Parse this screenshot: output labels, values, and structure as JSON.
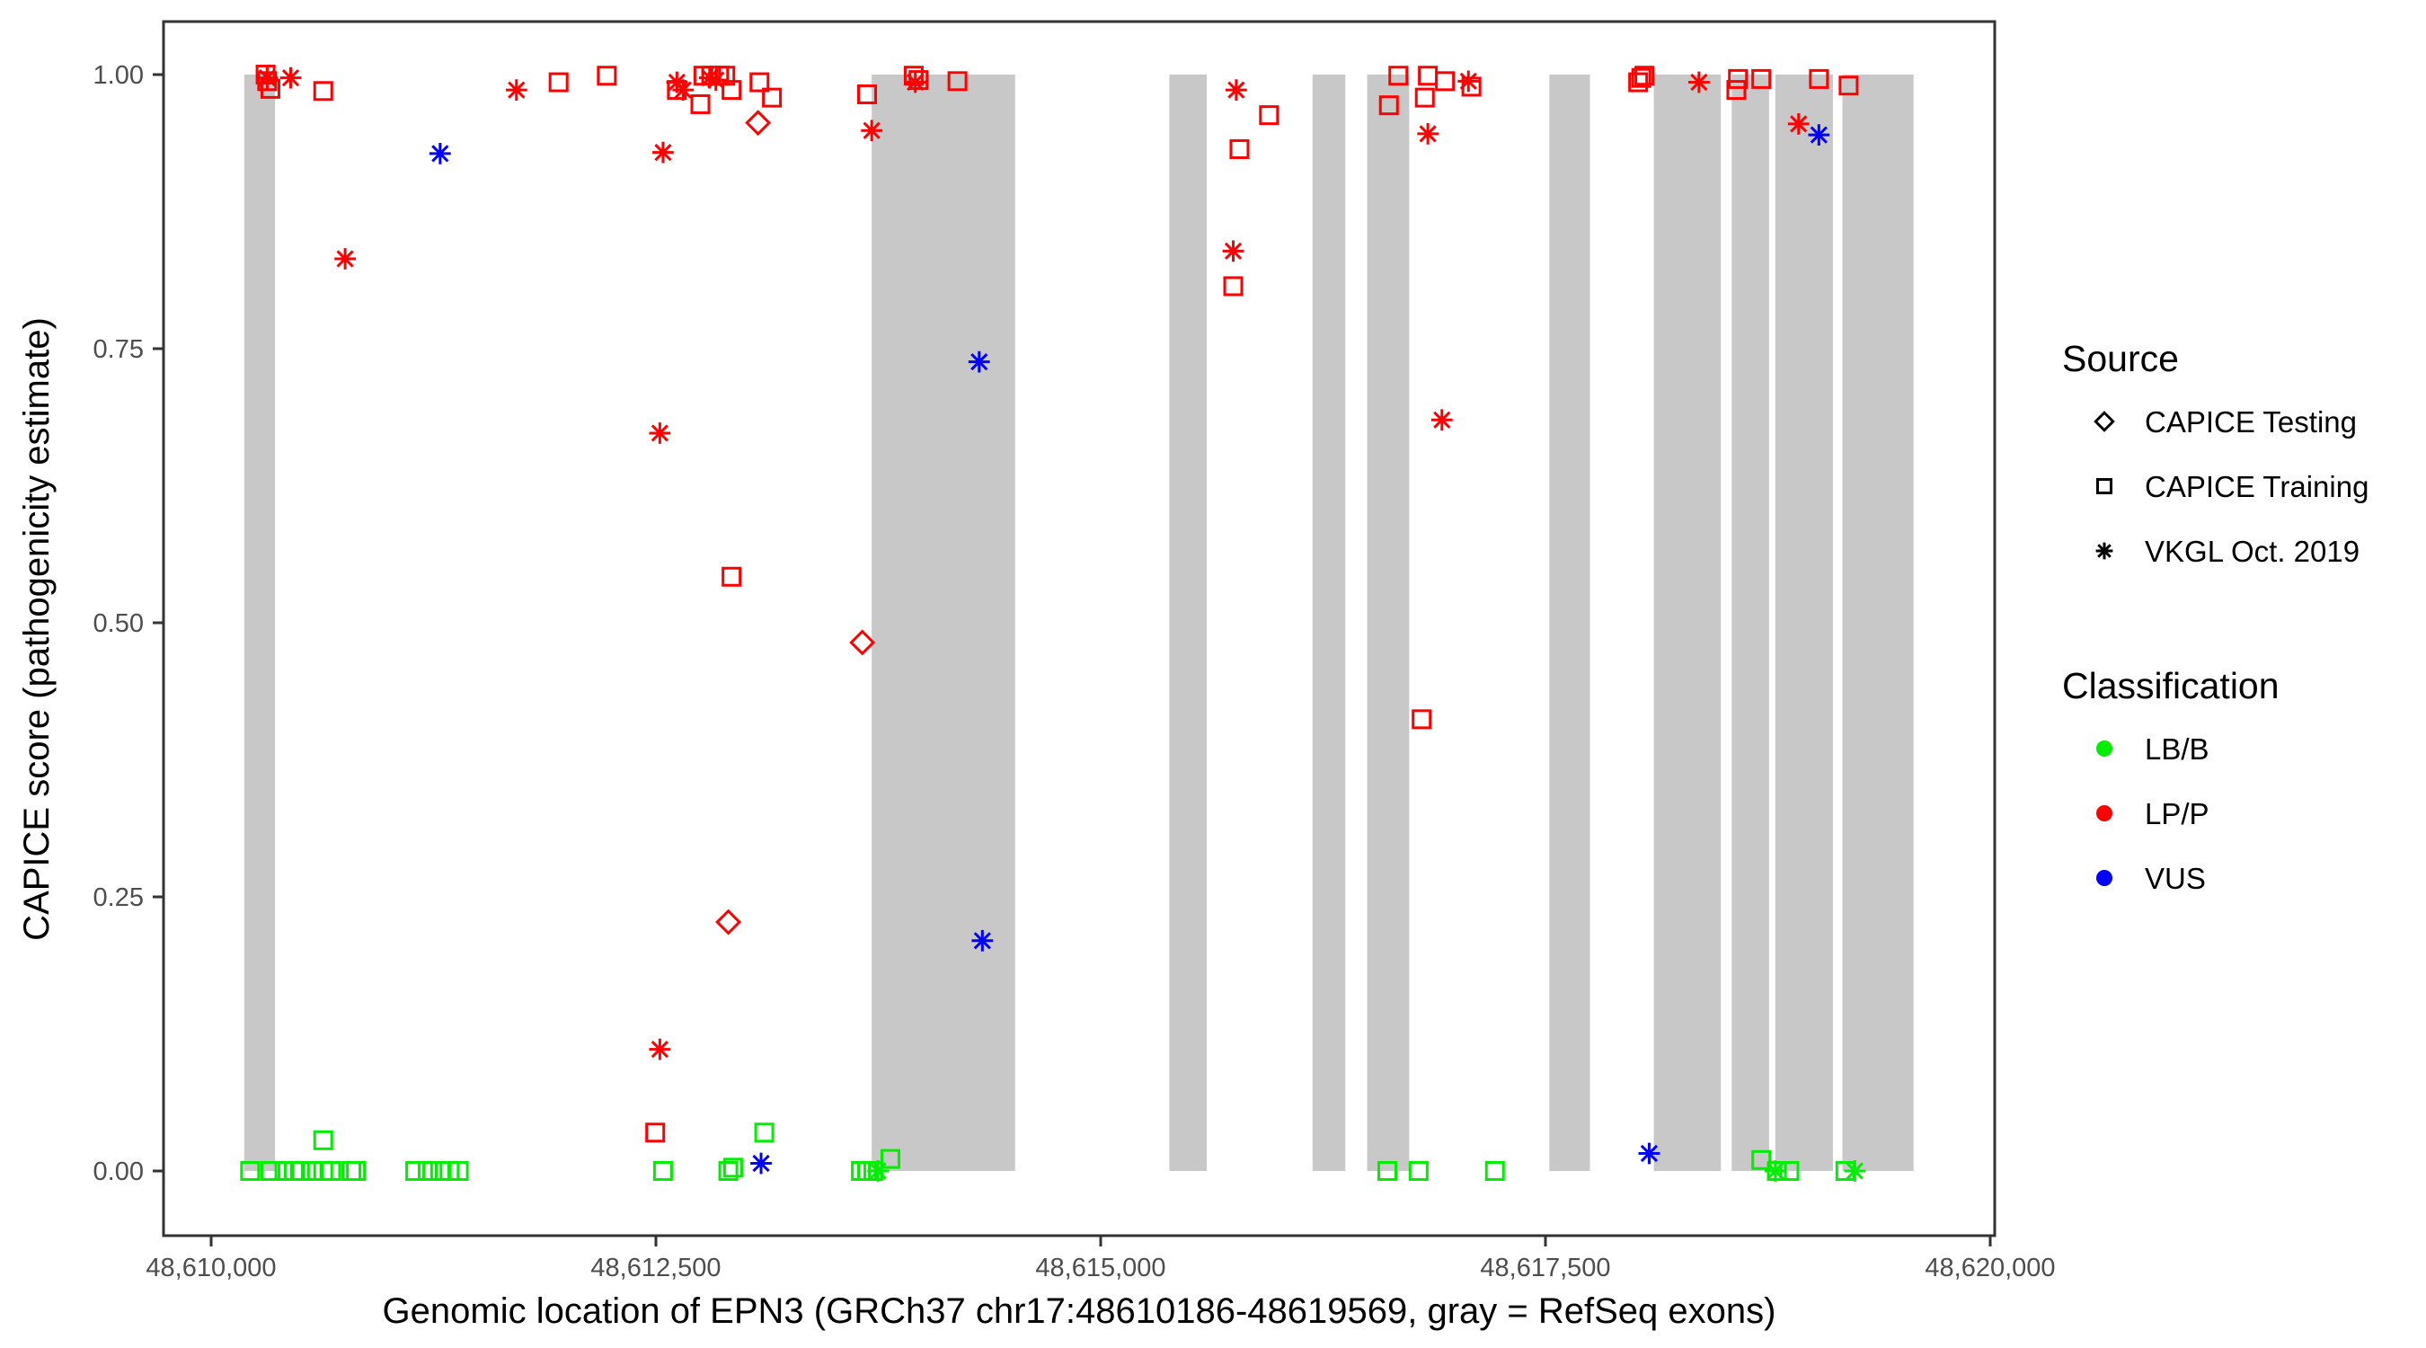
{
  "chart_data": {
    "type": "scatter",
    "xlabel": "Genomic location of EPN3 (GRCh37 chr17:48610186-48619569, gray = RefSeq exons)",
    "ylabel": "CAPICE score (pathogenicity estimate)",
    "xlim": [
      48609800,
      48620050
    ],
    "ylim": [
      -0.045,
      1.045
    ],
    "x_ticks": [
      48610000,
      48612500,
      48615000,
      48617500,
      48620000
    ],
    "x_tick_labels": [
      "48,610,000",
      "48,612,500",
      "48,615,000",
      "48,617,500",
      "48,620,000"
    ],
    "y_ticks": [
      0,
      0.25,
      0.5,
      0.75,
      1.0
    ],
    "y_tick_labels": [
      "0.00",
      "0.25",
      "0.50",
      "0.75",
      "1.00"
    ],
    "grid": false,
    "exons": [
      [
        48610186,
        48610359
      ],
      [
        48613713,
        48614519
      ],
      [
        48615386,
        48615596
      ],
      [
        48616191,
        48616375
      ],
      [
        48616498,
        48616734
      ],
      [
        48617522,
        48617750
      ],
      [
        48618109,
        48618486
      ],
      [
        48618547,
        48618757
      ],
      [
        48618792,
        48619116
      ],
      [
        48619169,
        48619569
      ]
    ],
    "exon_color": "#c8c8c8",
    "legend": {
      "placement": "right",
      "source_title": "Source",
      "sources": [
        {
          "key": "testing",
          "label": "CAPICE Testing",
          "shape": "diamond"
        },
        {
          "key": "training",
          "label": "CAPICE Training",
          "shape": "square"
        },
        {
          "key": "vkgl",
          "label": "VKGL Oct. 2019",
          "shape": "asterisk"
        }
      ],
      "class_title": "Classification",
      "classes": [
        {
          "key": "LB/B",
          "label": "LB/B",
          "color": "#00ee00"
        },
        {
          "key": "LP/P",
          "label": "LP/P",
          "color": "#ff0000"
        },
        {
          "key": "VUS",
          "label": "VUS",
          "color": "#0000ff"
        }
      ]
    },
    "points": [
      [
        48610306,
        1.0,
        "training",
        "LP/P"
      ],
      [
        48610315,
        0.994,
        "training",
        "LP/P"
      ],
      [
        48610333,
        0.987,
        "training",
        "LP/P"
      ],
      [
        48610630,
        0.985,
        "training",
        "LP/P"
      ],
      [
        48611953,
        0.993,
        "training",
        "LP/P"
      ],
      [
        48612224,
        0.999,
        "training",
        "LP/P"
      ],
      [
        48612618,
        0.986,
        "training",
        "LP/P"
      ],
      [
        48612750,
        0.973,
        "training",
        "LP/P"
      ],
      [
        48612767,
        0.999,
        "training",
        "LP/P"
      ],
      [
        48612811,
        0.999,
        "training",
        "LP/P"
      ],
      [
        48612855,
        0.999,
        "training",
        "LP/P"
      ],
      [
        48612890,
        0.999,
        "training",
        "LP/P"
      ],
      [
        48612925,
        0.986,
        "training",
        "LP/P"
      ],
      [
        48613082,
        0.993,
        "training",
        "LP/P"
      ],
      [
        48613152,
        0.979,
        "training",
        "LP/P"
      ],
      [
        48613687,
        0.982,
        "training",
        "LP/P"
      ],
      [
        48613949,
        0.999,
        "training",
        "LP/P"
      ],
      [
        48613976,
        0.995,
        "training",
        "LP/P"
      ],
      [
        48614195,
        0.994,
        "training",
        "LP/P"
      ],
      [
        48612925,
        0.542,
        "training",
        "LP/P"
      ],
      [
        48612496,
        0.035,
        "training",
        "LP/P"
      ],
      [
        48615745,
        0.807,
        "training",
        "LP/P"
      ],
      [
        48615780,
        0.932,
        "training",
        "LP/P"
      ],
      [
        48615946,
        0.963,
        "training",
        "LP/P"
      ],
      [
        48616620,
        0.972,
        "training",
        "LP/P"
      ],
      [
        48616673,
        0.999,
        "training",
        "LP/P"
      ],
      [
        48616822,
        0.979,
        "training",
        "LP/P"
      ],
      [
        48616839,
        0.999,
        "training",
        "LP/P"
      ],
      [
        48616935,
        0.994,
        "training",
        "LP/P"
      ],
      [
        48617084,
        0.989,
        "training",
        "LP/P"
      ],
      [
        48616804,
        0.412,
        "training",
        "LP/P"
      ],
      [
        48618021,
        0.993,
        "training",
        "LP/P"
      ],
      [
        48618039,
        0.997,
        "training",
        "LP/P"
      ],
      [
        48618056,
        0.999,
        "training",
        "LP/P"
      ],
      [
        48618573,
        0.986,
        "training",
        "LP/P"
      ],
      [
        48618582,
        0.996,
        "training",
        "LP/P"
      ],
      [
        48618713,
        0.996,
        "training",
        "LP/P"
      ],
      [
        48619037,
        0.996,
        "training",
        "LP/P"
      ],
      [
        48619204,
        0.99,
        "training",
        "LP/P"
      ],
      [
        48613074,
        0.956,
        "testing",
        "LP/P"
      ],
      [
        48613660,
        0.482,
        "testing",
        "LP/P"
      ],
      [
        48612907,
        0.227,
        "testing",
        "LP/P"
      ],
      [
        48610315,
        0.997,
        "vkgl",
        "LP/P"
      ],
      [
        48610447,
        0.997,
        "vkgl",
        "LP/P"
      ],
      [
        48610753,
        0.832,
        "vkgl",
        "LP/P"
      ],
      [
        48611716,
        0.986,
        "vkgl",
        "LP/P"
      ],
      [
        48612540,
        0.929,
        "vkgl",
        "LP/P"
      ],
      [
        48612522,
        0.673,
        "vkgl",
        "LP/P"
      ],
      [
        48612522,
        0.111,
        "vkgl",
        "LP/P"
      ],
      [
        48612618,
        0.993,
        "vkgl",
        "LP/P"
      ],
      [
        48612653,
        0.986,
        "vkgl",
        "LP/P"
      ],
      [
        48612802,
        0.997,
        "vkgl",
        "LP/P"
      ],
      [
        48612837,
        0.995,
        "vkgl",
        "LP/P"
      ],
      [
        48613713,
        0.949,
        "vkgl",
        "LP/P"
      ],
      [
        48613958,
        0.993,
        "vkgl",
        "LP/P"
      ],
      [
        48615762,
        0.986,
        "vkgl",
        "LP/P"
      ],
      [
        48615745,
        0.839,
        "vkgl",
        "LP/P"
      ],
      [
        48616839,
        0.946,
        "vkgl",
        "LP/P"
      ],
      [
        48616918,
        0.685,
        "vkgl",
        "LP/P"
      ],
      [
        48617067,
        0.994,
        "vkgl",
        "LP/P"
      ],
      [
        48618363,
        0.993,
        "vkgl",
        "LP/P"
      ],
      [
        48618923,
        0.955,
        "vkgl",
        "LP/P"
      ],
      [
        48611287,
        0.928,
        "vkgl",
        "VUS"
      ],
      [
        48614317,
        0.738,
        "vkgl",
        "VUS"
      ],
      [
        48614335,
        0.21,
        "vkgl",
        "VUS"
      ],
      [
        48613091,
        0.007,
        "vkgl",
        "VUS"
      ],
      [
        48618083,
        0.016,
        "vkgl",
        "VUS"
      ],
      [
        48619037,
        0.945,
        "vkgl",
        "VUS"
      ],
      [
        48610219,
        0,
        "training",
        "LB/B"
      ],
      [
        48610333,
        0,
        "training",
        "LB/B"
      ],
      [
        48610412,
        0,
        "training",
        "LB/B"
      ],
      [
        48610464,
        0,
        "training",
        "LB/B"
      ],
      [
        48610499,
        0,
        "training",
        "LB/B"
      ],
      [
        48610569,
        0,
        "training",
        "LB/B"
      ],
      [
        48610630,
        0,
        "training",
        "LB/B"
      ],
      [
        48610674,
        0,
        "training",
        "LB/B"
      ],
      [
        48610788,
        0,
        "training",
        "LB/B"
      ],
      [
        48610814,
        0,
        "training",
        "LB/B"
      ],
      [
        48611147,
        0,
        "training",
        "LB/B"
      ],
      [
        48611217,
        0,
        "training",
        "LB/B"
      ],
      [
        48611287,
        0,
        "training",
        "LB/B"
      ],
      [
        48611340,
        0,
        "training",
        "LB/B"
      ],
      [
        48611392,
        0,
        "training",
        "LB/B"
      ],
      [
        48612540,
        0,
        "training",
        "LB/B"
      ],
      [
        48612907,
        0,
        "training",
        "LB/B"
      ],
      [
        48612934,
        0.003,
        "training",
        "LB/B"
      ],
      [
        48613652,
        0,
        "training",
        "LB/B"
      ],
      [
        48613687,
        0,
        "training",
        "LB/B"
      ],
      [
        48613722,
        0,
        "training",
        "LB/B"
      ],
      [
        48616611,
        0,
        "training",
        "LB/B"
      ],
      [
        48616787,
        0,
        "training",
        "LB/B"
      ],
      [
        48617216,
        0,
        "training",
        "LB/B"
      ],
      [
        48618801,
        0,
        "training",
        "LB/B"
      ],
      [
        48618871,
        0,
        "training",
        "LB/B"
      ],
      [
        48619186,
        0,
        "training",
        "LB/B"
      ],
      [
        48610630,
        0.028,
        "training",
        "LB/B"
      ],
      [
        48613109,
        0.035,
        "training",
        "LB/B"
      ],
      [
        48613818,
        0.011,
        "training",
        "LB/B"
      ],
      [
        48618713,
        0.01,
        "training",
        "LB/B"
      ],
      [
        48613748,
        0,
        "vkgl",
        "LB/B"
      ],
      [
        48618792,
        0,
        "vkgl",
        "LB/B"
      ],
      [
        48619239,
        0,
        "vkgl",
        "LB/B"
      ]
    ]
  }
}
